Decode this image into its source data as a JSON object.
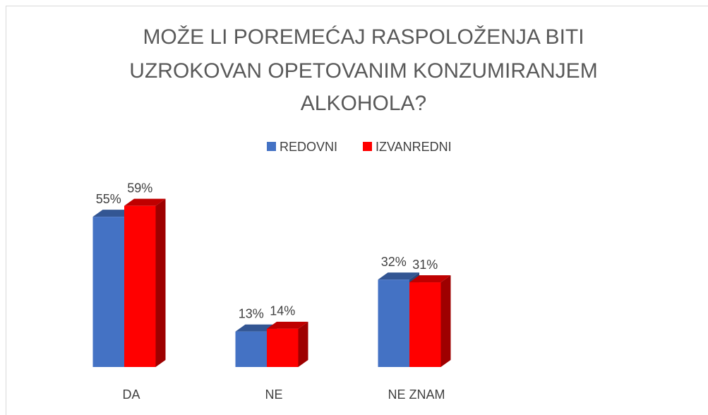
{
  "chart_data": {
    "type": "bar3d",
    "title": [
      "MOŽE LI POREMEĆAJ RASPOLOŽENJA BITI",
      "UZROKOVAN OPETOVANIM KONZUMIRANJEM",
      "ALKOHOLA?"
    ],
    "categories": [
      "DA",
      "NE",
      "NE ZNAM"
    ],
    "series": [
      {
        "name": "REDOVNI",
        "color": "#4472c4",
        "values": [
          55,
          13,
          32
        ],
        "value_labels": [
          "55%",
          "13%",
          "32%"
        ]
      },
      {
        "name": "IZVANREDNI",
        "color": "#ff0000",
        "values": [
          59,
          14,
          31
        ],
        "value_labels": [
          "59%",
          "14%",
          "31%"
        ]
      }
    ],
    "legend": "top"
  }
}
